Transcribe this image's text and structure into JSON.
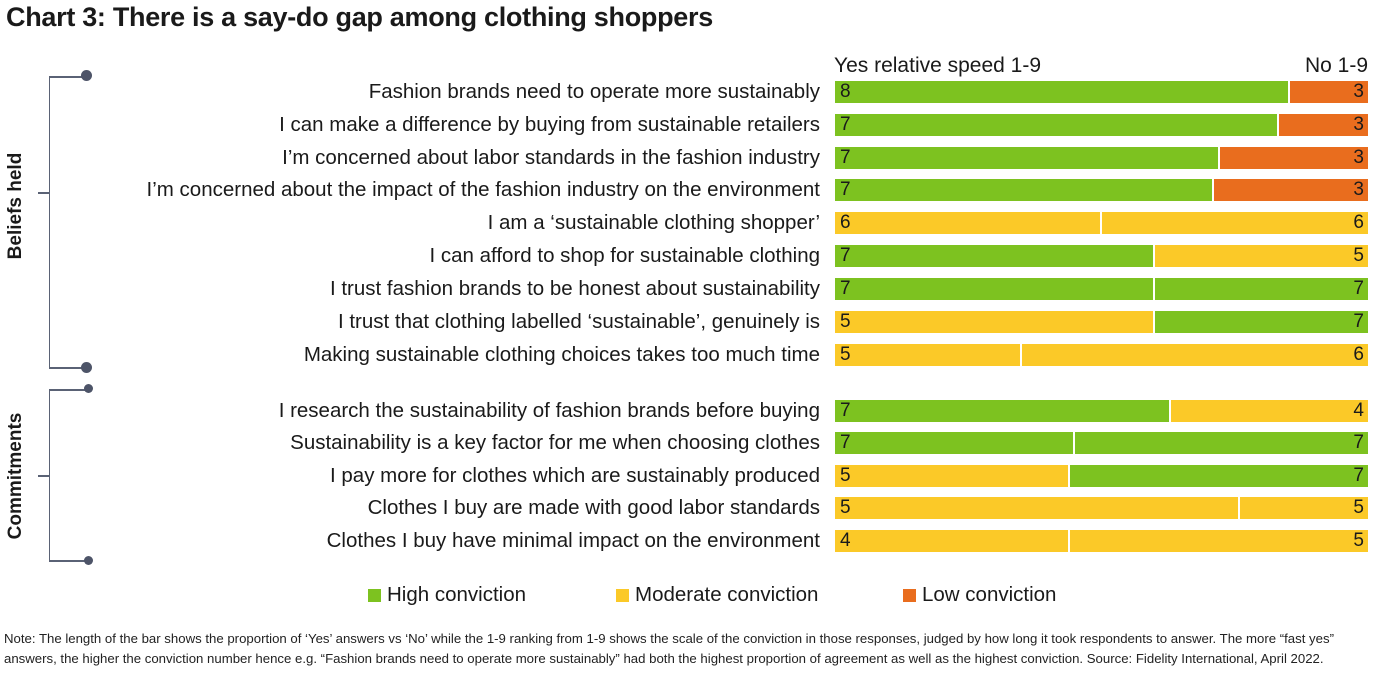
{
  "title": "Chart 3: There is a say-do gap among clothing shoppers",
  "headers": {
    "yes": "Yes relative speed 1-9",
    "no": "No 1-9"
  },
  "colors": {
    "high": "#7dc220",
    "moderate": "#fbc928",
    "low": "#e96d1e"
  },
  "groups": [
    {
      "label": "Beliefs held"
    },
    {
      "label": "Commitments"
    }
  ],
  "chart_data": {
    "type": "bar",
    "orientation": "horizontal-stacked-100",
    "title": "Chart 3: There is a say-do gap among clothing shoppers",
    "rows": [
      {
        "label": "Fashion brands need to operate more sustainably",
        "group": "Beliefs held",
        "yes_share": 0.853,
        "yes_score": "8",
        "yes_level": "high",
        "no_score": "3",
        "no_level": "low"
      },
      {
        "label": "I can make a difference by buying from sustainable retailers",
        "group": "Beliefs held",
        "yes_share": 0.833,
        "yes_score": "7",
        "yes_level": "high",
        "no_score": "3",
        "no_level": "low"
      },
      {
        "label": "I’m concerned about labor standards in the fashion industry",
        "group": "Beliefs held",
        "yes_share": 0.722,
        "yes_score": "7",
        "yes_level": "high",
        "no_score": "3",
        "no_level": "low"
      },
      {
        "label": "I’m concerned about the impact of the fashion industry on the environment",
        "group": "Beliefs held",
        "yes_share": 0.711,
        "yes_score": "7",
        "yes_level": "high",
        "no_score": "3",
        "no_level": "low"
      },
      {
        "label": "I am a ‘sustainable clothing shopper’",
        "group": "Beliefs held",
        "yes_share": 0.5,
        "yes_score": "6",
        "yes_level": "moderate",
        "no_score": "6",
        "no_level": "moderate"
      },
      {
        "label": "I can afford to shop for sustainable clothing",
        "group": "Beliefs held",
        "yes_share": 0.6,
        "yes_score": "7",
        "yes_level": "high",
        "no_score": "5",
        "no_level": "moderate"
      },
      {
        "label": "I trust fashion brands to be honest about sustainability",
        "group": "Beliefs held",
        "yes_share": 0.6,
        "yes_score": "7",
        "yes_level": "high",
        "no_score": "7",
        "no_level": "high"
      },
      {
        "label": "I trust that clothing labelled ‘sustainable’, genuinely is",
        "group": "Beliefs held",
        "yes_share": 0.6,
        "yes_score": "5",
        "yes_level": "moderate",
        "no_score": "7",
        "no_level": "high"
      },
      {
        "label": "Making sustainable clothing choices takes too much time",
        "group": "Beliefs held",
        "yes_share": 0.35,
        "yes_score": "5",
        "yes_level": "moderate",
        "no_score": "6",
        "no_level": "moderate"
      },
      {
        "label": "I research the sustainability of fashion brands before buying",
        "group": "Commitments",
        "yes_share": 0.63,
        "yes_score": "7",
        "yes_level": "high",
        "no_score": "4",
        "no_level": "moderate"
      },
      {
        "label": "Sustainability is a key factor for me when choosing clothes",
        "group": "Commitments",
        "yes_share": 0.45,
        "yes_score": "7",
        "yes_level": "high",
        "no_score": "7",
        "no_level": "high"
      },
      {
        "label": "I pay more for clothes which are sustainably produced",
        "group": "Commitments",
        "yes_share": 0.44,
        "yes_score": "5",
        "yes_level": "moderate",
        "no_score": "7",
        "no_level": "high"
      },
      {
        "label": "Clothes I buy are made with good labor standards",
        "group": "Commitments",
        "yes_share": 0.76,
        "yes_score": "5",
        "yes_level": "moderate",
        "no_score": "5",
        "no_level": "moderate"
      },
      {
        "label": "Clothes I buy have minimal impact on the environment",
        "group": "Commitments",
        "yes_share": 0.44,
        "yes_score": "4",
        "yes_level": "moderate",
        "no_score": "5",
        "no_level": "moderate"
      }
    ],
    "legend": [
      {
        "level": "high",
        "label": "High conviction"
      },
      {
        "level": "moderate",
        "label": "Moderate conviction"
      },
      {
        "level": "low",
        "label": "Low conviction"
      }
    ],
    "legend_placement": "bottom"
  },
  "note": "Note: The length of the bar shows the proportion of ‘Yes’ answers vs ‘No’ while the 1-9 ranking from 1-9 shows the scale of the conviction in those responses, judged by how long it took respondents to answer. The more “fast yes” answers, the higher the conviction number hence e.g. “Fashion brands need to operate more sustainably” had both the highest proportion of agreement as well as the highest conviction. Source: Fidelity International, April 2022."
}
